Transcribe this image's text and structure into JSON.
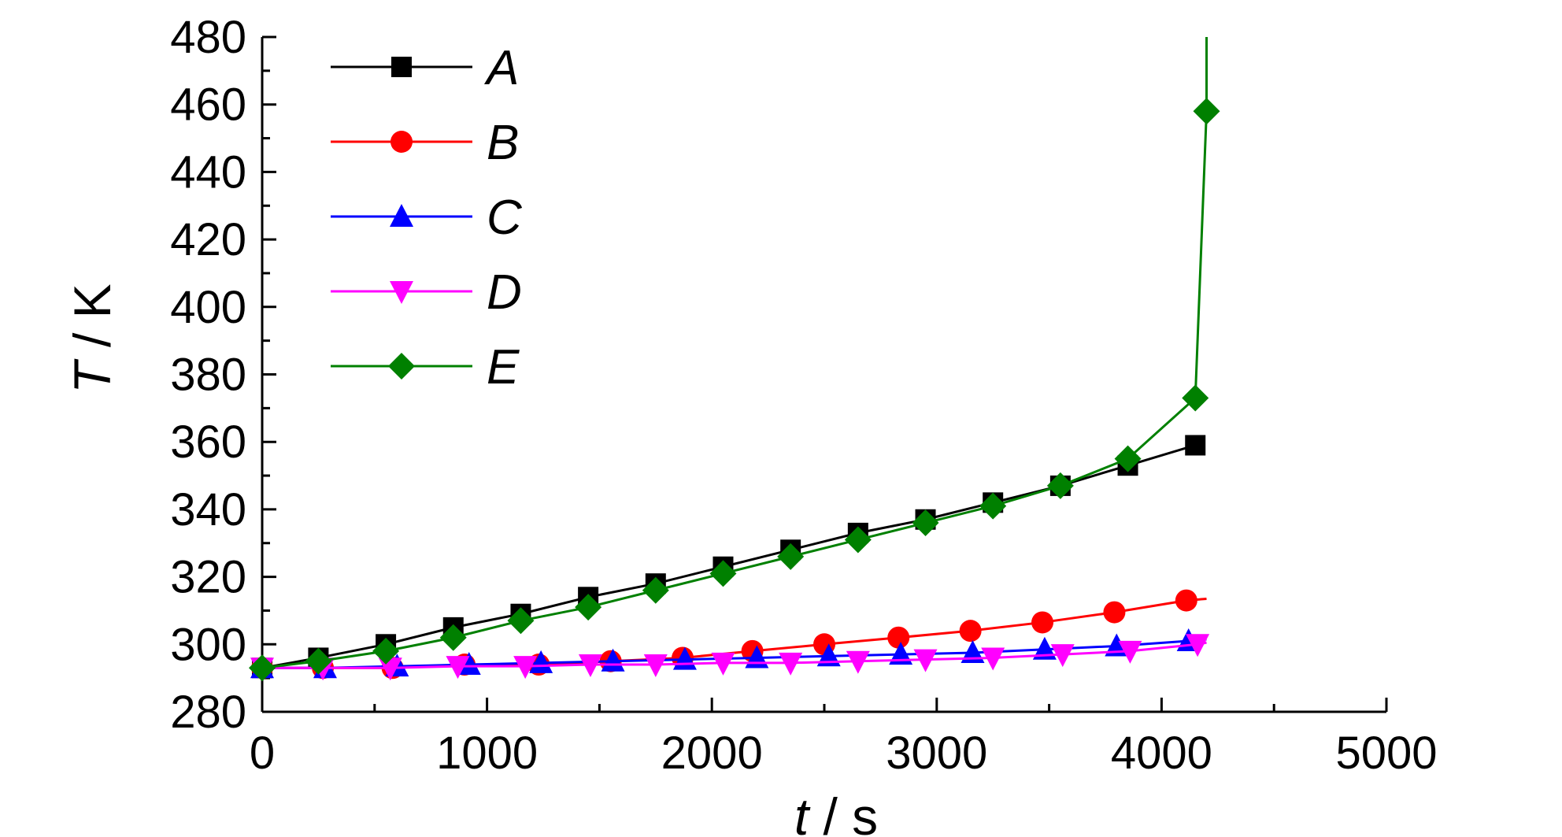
{
  "chart_data": {
    "type": "line",
    "title": "",
    "xlabel": {
      "symbol": "t",
      "unit": " / s"
    },
    "ylabel": {
      "symbol": "T",
      "unit": " / K"
    },
    "xlim": [
      0,
      5000
    ],
    "ylim": [
      280,
      480
    ],
    "xticks": [
      0,
      1000,
      2000,
      3000,
      4000,
      5000
    ],
    "yticks": [
      280,
      300,
      320,
      340,
      360,
      380,
      400,
      420,
      440,
      460,
      480
    ],
    "x_minor_step": 500,
    "y_minor_step": 10,
    "grid": false,
    "legend_position": "top-left",
    "series": [
      {
        "name": "A",
        "color": "#000000",
        "marker": "square",
        "x": [
          0,
          250,
          550,
          850,
          1150,
          1450,
          1750,
          2050,
          2350,
          2650,
          2950,
          3250,
          3550,
          3850,
          4150
        ],
        "y": [
          293,
          296,
          300,
          305,
          309,
          314,
          318,
          323,
          328,
          333,
          337,
          342,
          347,
          353,
          359
        ]
      },
      {
        "name": "B",
        "color": "#ff0000",
        "marker": "circle",
        "x": [
          0,
          270,
          580,
          900,
          1230,
          1550,
          1870,
          2180,
          2500,
          2830,
          3150,
          3470,
          3790,
          4110,
          4200
        ],
        "y": [
          293,
          293,
          293,
          294,
          294,
          295,
          296,
          298,
          300,
          302,
          304,
          306.5,
          309.5,
          313,
          313.5
        ]
      },
      {
        "name": "C",
        "color": "#0000ff",
        "marker": "triangle-up",
        "x": [
          0,
          280,
          600,
          920,
          1240,
          1560,
          1880,
          2200,
          2520,
          2840,
          3160,
          3480,
          3800,
          4120,
          4200
        ],
        "y": [
          293,
          293,
          293.5,
          294,
          294.5,
          295,
          295.5,
          296,
          296.5,
          297,
          297.5,
          298.5,
          299.5,
          301,
          301.5
        ]
      },
      {
        "name": "D",
        "color": "#ff00ff",
        "marker": "triangle-down",
        "x": [
          0,
          270,
          570,
          870,
          1170,
          1460,
          1750,
          2050,
          2350,
          2650,
          2950,
          3250,
          3560,
          3860,
          4160,
          4200
        ],
        "y": [
          293,
          293,
          293,
          293.5,
          293.5,
          294,
          294,
          294.5,
          294.5,
          295,
          295.5,
          296,
          297,
          298,
          300,
          300.5
        ]
      },
      {
        "name": "E",
        "color": "#008000",
        "marker": "diamond",
        "x": [
          0,
          250,
          550,
          850,
          1150,
          1450,
          1750,
          2050,
          2350,
          2650,
          2950,
          3250,
          3550,
          3850,
          4150,
          4200
        ],
        "y": [
          293,
          295,
          298,
          302,
          307,
          311,
          316,
          321,
          326,
          331,
          336,
          341,
          347,
          355,
          373,
          458
        ],
        "line_end": [
          4200,
          480
        ]
      }
    ]
  }
}
